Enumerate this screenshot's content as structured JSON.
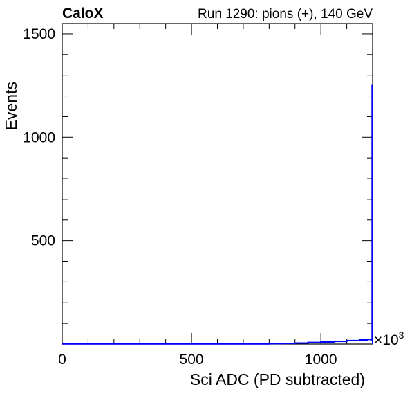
{
  "header": {
    "brand": "CaloX",
    "run_info": "Run 1290: pions (+), 140 GeV"
  },
  "chart_data": {
    "type": "histogram",
    "xlabel": "Sci ADC (PD subtracted)",
    "ylabel": "Events",
    "x_multiplier": "×10",
    "x_multiplier_exponent": "3",
    "xlim": [
      0,
      1200
    ],
    "ylim": [
      0,
      1550
    ],
    "x_ticks": [
      0,
      500,
      1000
    ],
    "y_ticks": [
      500,
      1000,
      1500
    ],
    "grid": false,
    "line_color": "#0000ff",
    "bins": [
      {
        "x": 0,
        "y": 1
      },
      {
        "x": 800,
        "y": 2
      },
      {
        "x": 850,
        "y": 3
      },
      {
        "x": 900,
        "y": 5
      },
      {
        "x": 950,
        "y": 8
      },
      {
        "x": 1000,
        "y": 10
      },
      {
        "x": 1050,
        "y": 13
      },
      {
        "x": 1100,
        "y": 17
      },
      {
        "x": 1150,
        "y": 20
      },
      {
        "x": 1180,
        "y": 22
      },
      {
        "x": 1195,
        "y": 18
      },
      {
        "x": 1198,
        "y": 1250
      }
    ]
  }
}
